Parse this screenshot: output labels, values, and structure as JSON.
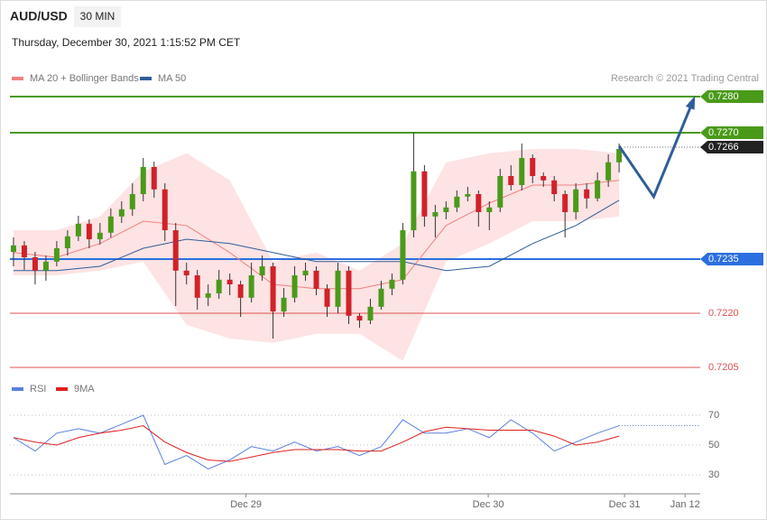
{
  "chart_data": {
    "type": "candlestick",
    "title": "AUD/USD",
    "timeframe": "30 MIN",
    "subtitle": "Thursday, December 30, 2021 1:15:52 PM CET",
    "credit": "Research © 2021 Trading Central",
    "legend": [
      {
        "name": "MA 20 + Bollinger Bands",
        "color": "#f08080"
      },
      {
        "name": "MA 50",
        "color": "#2f5d9a"
      }
    ],
    "xlim": [
      -0.33,
      63.5
    ],
    "xticks": [
      {
        "value": 21.5,
        "label": "Dec 29"
      },
      {
        "value": 43.9,
        "label": "Dec 30"
      },
      {
        "value": 56.5,
        "label": "Dec 31"
      },
      {
        "value": 62.1,
        "label": "Jan 12"
      }
    ],
    "ylim": [
      0.72,
      0.7285
    ],
    "levels": [
      {
        "value": 0.728,
        "label": "0.7280",
        "color": "#4a9a1a",
        "style": "solid-box"
      },
      {
        "value": 0.727,
        "label": "0.7270",
        "color": "#4a9a1a",
        "style": "solid-box"
      },
      {
        "value": 0.7266,
        "label": "0.7266",
        "color": "#222222",
        "style": "current"
      },
      {
        "value": 0.7235,
        "label": "0.7235",
        "color": "#2b6fe0",
        "style": "solid-box"
      },
      {
        "value": 0.722,
        "label": "0.7220",
        "color": "#e05050",
        "style": "text"
      },
      {
        "value": 0.7205,
        "label": "0.7205",
        "color": "#e05050",
        "style": "text"
      }
    ],
    "up_color": "#4a9a1a",
    "down_color": "#d0222a",
    "candles": [
      [
        0.7237,
        0.7241,
        0.7233,
        0.72388
      ],
      [
        0.72388,
        0.724,
        0.7232,
        0.72355
      ],
      [
        0.72355,
        0.7237,
        0.7228,
        0.72318
      ],
      [
        0.72318,
        0.7236,
        0.7229,
        0.72343
      ],
      [
        0.72343,
        0.724,
        0.7233,
        0.7238
      ],
      [
        0.7238,
        0.7243,
        0.7236,
        0.72413
      ],
      [
        0.72413,
        0.7247,
        0.724,
        0.72448
      ],
      [
        0.72448,
        0.7246,
        0.7238,
        0.72405
      ],
      [
        0.72405,
        0.7245,
        0.7239,
        0.72423
      ],
      [
        0.72423,
        0.7249,
        0.7241,
        0.72468
      ],
      [
        0.72468,
        0.7251,
        0.7245,
        0.72488
      ],
      [
        0.72488,
        0.7256,
        0.7247,
        0.7253
      ],
      [
        0.7253,
        0.7263,
        0.7251,
        0.72605
      ],
      [
        0.72605,
        0.7262,
        0.7252,
        0.72543
      ],
      [
        0.72543,
        0.7256,
        0.724,
        0.7243
      ],
      [
        0.7243,
        0.7245,
        0.7222,
        0.72318
      ],
      [
        0.72318,
        0.7234,
        0.7228,
        0.72305
      ],
      [
        0.72305,
        0.7232,
        0.7221,
        0.72243
      ],
      [
        0.72243,
        0.7228,
        0.7222,
        0.72255
      ],
      [
        0.72255,
        0.7232,
        0.7224,
        0.72293
      ],
      [
        0.72293,
        0.7231,
        0.7225,
        0.7228
      ],
      [
        0.7228,
        0.7229,
        0.7219,
        0.72243
      ],
      [
        0.72243,
        0.7234,
        0.7223,
        0.72305
      ],
      [
        0.72305,
        0.7236,
        0.7229,
        0.7233
      ],
      [
        0.7233,
        0.7234,
        0.7213,
        0.72205
      ],
      [
        0.72205,
        0.7227,
        0.7219,
        0.72243
      ],
      [
        0.72243,
        0.7233,
        0.7223,
        0.72305
      ],
      [
        0.72305,
        0.7234,
        0.7229,
        0.72318
      ],
      [
        0.72318,
        0.7233,
        0.7225,
        0.72268
      ],
      [
        0.72268,
        0.7228,
        0.7219,
        0.72218
      ],
      [
        0.72218,
        0.7234,
        0.722,
        0.72318
      ],
      [
        0.72318,
        0.7233,
        0.7217,
        0.72193
      ],
      [
        0.72193,
        0.722,
        0.7216,
        0.7218
      ],
      [
        0.7218,
        0.7224,
        0.7217,
        0.72218
      ],
      [
        0.72218,
        0.7229,
        0.7221,
        0.72268
      ],
      [
        0.72268,
        0.7231,
        0.7225,
        0.72293
      ],
      [
        0.72293,
        0.7245,
        0.7228,
        0.7243
      ],
      [
        0.7243,
        0.727,
        0.7241,
        0.72593
      ],
      [
        0.72593,
        0.7261,
        0.7244,
        0.72468
      ],
      [
        0.72468,
        0.725,
        0.7241,
        0.7248
      ],
      [
        0.7248,
        0.7251,
        0.7246,
        0.72493
      ],
      [
        0.72493,
        0.7254,
        0.7248,
        0.72523
      ],
      [
        0.72523,
        0.7255,
        0.7251,
        0.7253
      ],
      [
        0.7253,
        0.7254,
        0.7244,
        0.7248
      ],
      [
        0.7248,
        0.7251,
        0.7243,
        0.72493
      ],
      [
        0.72493,
        0.726,
        0.7248,
        0.7258
      ],
      [
        0.7258,
        0.7261,
        0.7254,
        0.72555
      ],
      [
        0.72555,
        0.7267,
        0.7254,
        0.7263
      ],
      [
        0.7263,
        0.7264,
        0.7256,
        0.7258
      ],
      [
        0.7258,
        0.7259,
        0.7255,
        0.72568
      ],
      [
        0.72568,
        0.7258,
        0.7251,
        0.7253
      ],
      [
        0.7253,
        0.7254,
        0.7241,
        0.7248
      ],
      [
        0.7248,
        0.7256,
        0.7246,
        0.72543
      ],
      [
        0.72543,
        0.7256,
        0.7249,
        0.72518
      ],
      [
        0.72518,
        0.7259,
        0.7251,
        0.72568
      ],
      [
        0.72568,
        0.7264,
        0.7255,
        0.72618
      ],
      [
        0.72618,
        0.7267,
        0.7259,
        0.72655
      ]
    ],
    "overlay_x": [
      0,
      4,
      8,
      12,
      16,
      20,
      24,
      28,
      32,
      36,
      40,
      44,
      48,
      52,
      56
    ],
    "overlays": [
      {
        "name": "upper",
        "color": "#f7c6c6",
        "values": [
          0.7243,
          0.7243,
          0.72468,
          0.72593,
          0.72643,
          0.72568,
          0.72343,
          0.72368,
          0.72318,
          0.72393,
          0.72618,
          0.72643,
          0.72655,
          0.72655,
          0.72643
        ]
      },
      {
        "name": "lower",
        "color": "#f7c6c6",
        "values": [
          0.72305,
          0.72305,
          0.72318,
          0.72343,
          0.72168,
          0.7213,
          0.72118,
          0.72143,
          0.72143,
          0.72068,
          0.72343,
          0.72393,
          0.72455,
          0.72455,
          0.72468
        ]
      },
      {
        "name": "MA 20",
        "color": "#f08080",
        "values": [
          0.72368,
          0.72355,
          0.72393,
          0.72455,
          0.72443,
          0.72368,
          0.7228,
          0.72268,
          0.72268,
          0.72293,
          0.72443,
          0.72505,
          0.72555,
          0.72555,
          0.72568
        ]
      },
      {
        "name": "MA 50",
        "color": "#2f5d9a",
        "values": [
          0.72318,
          0.72318,
          0.7233,
          0.7238,
          0.72405,
          0.72393,
          0.72368,
          0.72343,
          0.72343,
          0.72343,
          0.72318,
          0.7233,
          0.72393,
          0.72443,
          0.72513
        ]
      }
    ],
    "projection": {
      "color": "#2f5d9a",
      "x": [
        56,
        59.2,
        62.9
      ],
      "values": [
        0.72663,
        0.72523,
        0.72793
      ]
    },
    "rsi": {
      "ylim": [
        20,
        80
      ],
      "yticks": [
        30,
        50,
        70
      ],
      "legend": [
        {
          "name": "RSI",
          "color": "#5b7fe0"
        },
        {
          "name": "9MA",
          "color": "#e02020"
        }
      ],
      "x": [
        0,
        2,
        4,
        6,
        8,
        10,
        12,
        14,
        16,
        18,
        20,
        22,
        24,
        26,
        28,
        30,
        32,
        34,
        36,
        38,
        40,
        42,
        44,
        46,
        48,
        50,
        52,
        54,
        56
      ],
      "series": [
        {
          "name": "RSI",
          "color": "#5b7fe0",
          "values": [
            55,
            46,
            58,
            61,
            58,
            64,
            70,
            37,
            43,
            34,
            40,
            49,
            46,
            52,
            46,
            49,
            43,
            49,
            67,
            58,
            58,
            61,
            55,
            67,
            58,
            46,
            52,
            58,
            63
          ]
        },
        {
          "name": "9MA",
          "color": "#e02020",
          "values": [
            55,
            52,
            50,
            55,
            58,
            60,
            63,
            52,
            45,
            40,
            39,
            42,
            45,
            47,
            47,
            47,
            46,
            46,
            52,
            59,
            62,
            61,
            60,
            60,
            60,
            56,
            50,
            52,
            56
          ]
        }
      ]
    }
  }
}
